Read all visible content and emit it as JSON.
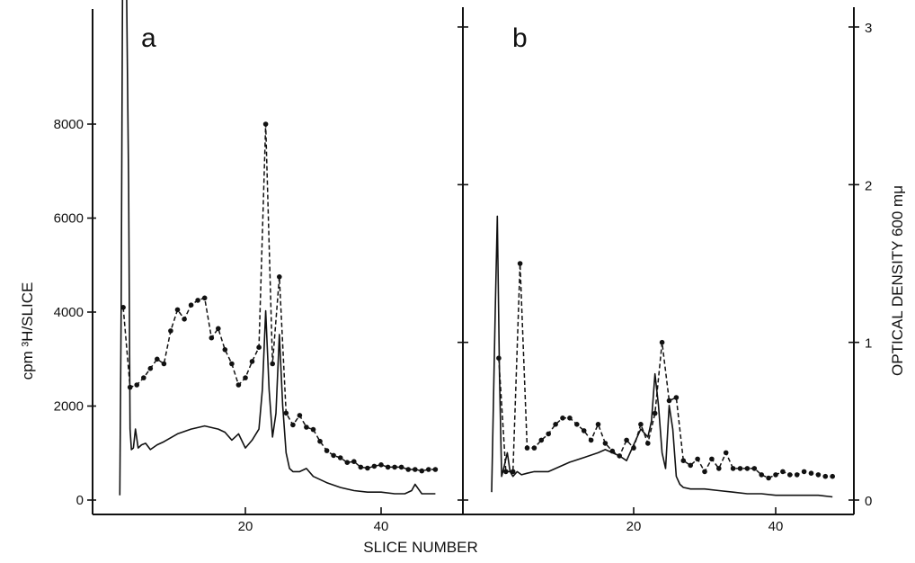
{
  "figure": {
    "xlabel": "SLICE   NUMBER",
    "ylabel_left": "cpm ³H/SLICE",
    "ylabel_right": "OPTICAL   DENSITY   600 mμ"
  },
  "chart_data": [
    {
      "type": "line",
      "panel_label": "a",
      "xlabel": "SLICE   NUMBER",
      "ylabel": "cpm ³H/SLICE",
      "xlim": [
        0,
        48
      ],
      "ylim": [
        0,
        10000
      ],
      "x_ticks": [
        20,
        40
      ],
      "y_ticks": [
        0,
        2000,
        4000,
        6000,
        8000
      ],
      "series": [
        {
          "style": "dots",
          "x": [
            2,
            3,
            4,
            5,
            6,
            7,
            8,
            9,
            10,
            11,
            12,
            13,
            14,
            15,
            16,
            17,
            18,
            19,
            20,
            21,
            22,
            23,
            24,
            25,
            26,
            27,
            28,
            29,
            30,
            31,
            32,
            33,
            34,
            35,
            36,
            37,
            38,
            39,
            40,
            41,
            42,
            43,
            44,
            45,
            46,
            47,
            48
          ],
          "y": [
            4100,
            2400,
            2450,
            2600,
            2800,
            3000,
            2900,
            3600,
            4050,
            3850,
            4150,
            4250,
            4300,
            3450,
            3650,
            3200,
            2900,
            2450,
            2600,
            2950,
            3250,
            8000,
            2900,
            4750,
            1850,
            1600,
            1800,
            1550,
            1500,
            1250,
            1050,
            950,
            900,
            800,
            820,
            700,
            680,
            720,
            750,
            700,
            700,
            700,
            650,
            650,
            620,
            650,
            650
          ]
        },
        {
          "style": "solid",
          "name": "optical density",
          "x": [
            1.5,
            1.7,
            1.9,
            2.1,
            2.3,
            2.5,
            2.8,
            3.0,
            3.2,
            3.5,
            3.8,
            4.2,
            4.7,
            5.3,
            6,
            7,
            8,
            10,
            12,
            14,
            16,
            17,
            18,
            19,
            20,
            21,
            22,
            22.5,
            23,
            23.5,
            24,
            24.5,
            25,
            25.5,
            26,
            26.5,
            27,
            28,
            29,
            30,
            32,
            34,
            36,
            38,
            40,
            42,
            43.5,
            44.5,
            45,
            45.5,
            46,
            47,
            48
          ],
          "y": [
            0.03,
            1.2,
            3.2,
            3.2,
            3.2,
            3.2,
            2.0,
            0.45,
            0.32,
            0.33,
            0.45,
            0.33,
            0.35,
            0.36,
            0.32,
            0.35,
            0.37,
            0.42,
            0.45,
            0.47,
            0.45,
            0.43,
            0.38,
            0.42,
            0.33,
            0.38,
            0.45,
            0.7,
            1.2,
            0.7,
            0.4,
            0.55,
            1.05,
            0.6,
            0.3,
            0.2,
            0.18,
            0.18,
            0.2,
            0.15,
            0.11,
            0.08,
            0.06,
            0.05,
            0.05,
            0.04,
            0.04,
            0.06,
            0.1,
            0.07,
            0.04,
            0.04,
            0.04
          ]
        }
      ]
    },
    {
      "type": "line",
      "panel_label": "b",
      "xlabel": "SLICE   NUMBER",
      "ylabel": "OPTICAL   DENSITY   600 mμ",
      "xlim": [
        0,
        48
      ],
      "ylim": [
        0,
        3.0
      ],
      "x_ticks": [
        20,
        40
      ],
      "y_ticks": [
        0,
        1,
        2,
        3
      ],
      "series": [
        {
          "style": "dots",
          "x": [
            1,
            2,
            3,
            4,
            5,
            6,
            7,
            8,
            9,
            10,
            11,
            12,
            13,
            14,
            15,
            16,
            17,
            18,
            19,
            20,
            21,
            22,
            23,
            24,
            25,
            26,
            27,
            28,
            29,
            30,
            31,
            32,
            33,
            34,
            35,
            36,
            37,
            38,
            39,
            40,
            41,
            42,
            43,
            44,
            45,
            46,
            47,
            48
          ],
          "y": [
            0.9,
            0.18,
            0.18,
            1.5,
            0.33,
            0.33,
            0.38,
            0.42,
            0.48,
            0.52,
            0.52,
            0.48,
            0.44,
            0.38,
            0.48,
            0.36,
            0.31,
            0.28,
            0.38,
            0.33,
            0.48,
            0.36,
            0.55,
            1.0,
            0.63,
            0.65,
            0.25,
            0.22,
            0.26,
            0.18,
            0.26,
            0.2,
            0.3,
            0.2,
            0.2,
            0.2,
            0.2,
            0.16,
            0.14,
            0.16,
            0.18,
            0.16,
            0.16,
            0.18,
            0.17,
            0.16,
            0.15,
            0.15
          ]
        },
        {
          "style": "solid",
          "name": "optical density",
          "x": [
            0,
            0.5,
            0.8,
            1.1,
            1.4,
            1.8,
            2.2,
            2.6,
            3,
            3.6,
            4.2,
            5,
            6,
            8,
            10,
            11,
            13,
            15,
            16,
            17,
            18,
            19,
            20,
            21,
            22,
            22.5,
            23,
            23.5,
            24,
            24.5,
            25,
            25.5,
            26,
            26.5,
            27,
            28,
            30,
            32,
            34,
            36,
            38,
            40,
            42,
            44,
            46,
            48
          ],
          "y": [
            0.05,
            1.2,
            1.8,
            0.8,
            0.15,
            0.22,
            0.3,
            0.18,
            0.15,
            0.18,
            0.16,
            0.17,
            0.18,
            0.18,
            0.22,
            0.24,
            0.27,
            0.3,
            0.32,
            0.3,
            0.28,
            0.25,
            0.35,
            0.45,
            0.4,
            0.5,
            0.8,
            0.6,
            0.3,
            0.2,
            0.6,
            0.45,
            0.15,
            0.1,
            0.08,
            0.07,
            0.07,
            0.06,
            0.05,
            0.04,
            0.04,
            0.03,
            0.03,
            0.03,
            0.03,
            0.02
          ]
        }
      ]
    }
  ]
}
